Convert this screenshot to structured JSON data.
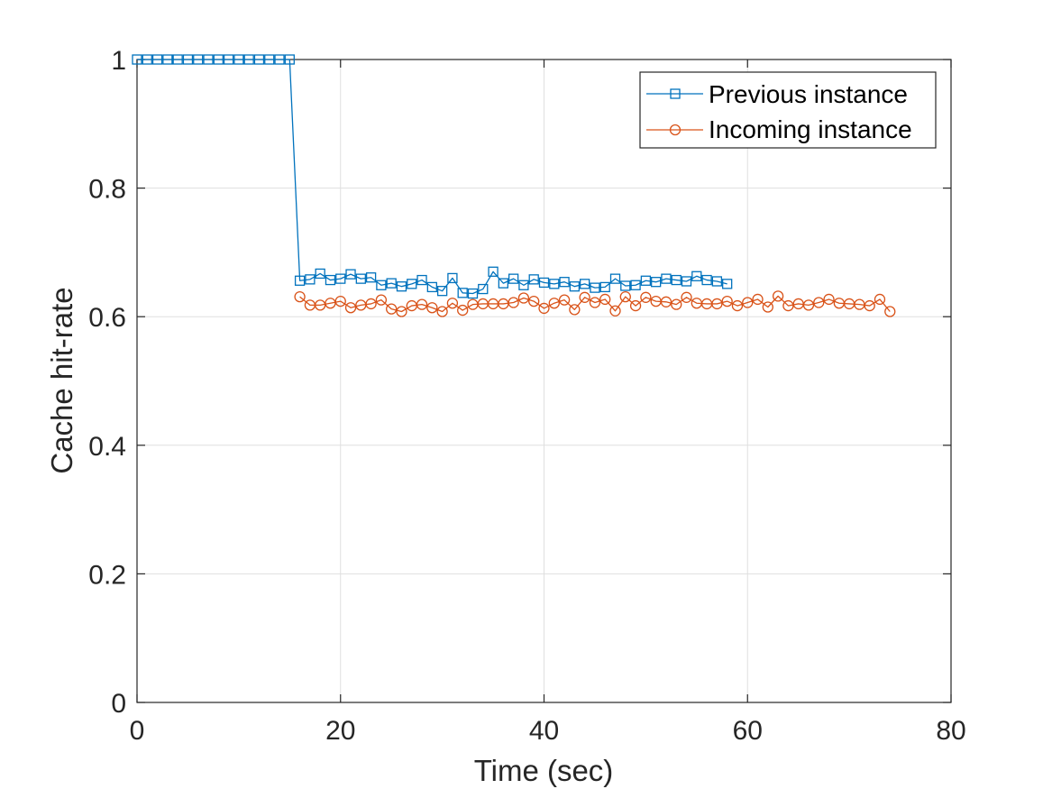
{
  "chart_data": {
    "type": "line",
    "xlabel": "Time (sec)",
    "ylabel": "Cache hit-rate",
    "xlim": [
      0,
      80
    ],
    "ylim": [
      0,
      1
    ],
    "xticks": [
      0,
      20,
      40,
      60,
      80
    ],
    "yticks": [
      0,
      0.2,
      0.4,
      0.6,
      0.8,
      1
    ],
    "xtick_labels": [
      "0",
      "20",
      "40",
      "60",
      "80"
    ],
    "ytick_labels": [
      "0",
      "0.2",
      "0.4",
      "0.6",
      "0.8",
      "1"
    ],
    "grid": true,
    "legend_position": "top-right",
    "series": [
      {
        "name": "Previous instance",
        "color": "#0072BD",
        "marker": "square",
        "x": [
          0,
          1,
          2,
          3,
          4,
          5,
          6,
          7,
          8,
          9,
          10,
          11,
          12,
          13,
          14,
          15,
          16,
          17,
          18,
          19,
          20,
          21,
          22,
          23,
          24,
          25,
          26,
          27,
          28,
          29,
          30,
          31,
          32,
          33,
          34,
          35,
          36,
          37,
          38,
          39,
          40,
          41,
          42,
          43,
          44,
          45,
          46,
          47,
          48,
          49,
          50,
          51,
          52,
          53,
          54,
          55,
          56,
          57,
          58
        ],
        "y": [
          1,
          1,
          1,
          1,
          1,
          1,
          1,
          1,
          1,
          1,
          1,
          1,
          1,
          1,
          1,
          1,
          0.656,
          0.658,
          0.667,
          0.657,
          0.659,
          0.666,
          0.659,
          0.661,
          0.649,
          0.652,
          0.647,
          0.651,
          0.657,
          0.646,
          0.64,
          0.66,
          0.637,
          0.636,
          0.643,
          0.67,
          0.652,
          0.659,
          0.649,
          0.658,
          0.653,
          0.651,
          0.654,
          0.647,
          0.651,
          0.645,
          0.646,
          0.659,
          0.648,
          0.649,
          0.656,
          0.654,
          0.659,
          0.657,
          0.655,
          0.663,
          0.657,
          0.655,
          0.651
        ]
      },
      {
        "name": "Incoming instance",
        "color": "#D95319",
        "marker": "circle",
        "x": [
          16,
          17,
          18,
          19,
          20,
          21,
          22,
          23,
          24,
          25,
          26,
          27,
          28,
          29,
          30,
          31,
          32,
          33,
          34,
          35,
          36,
          37,
          38,
          39,
          40,
          41,
          42,
          43,
          44,
          45,
          46,
          47,
          48,
          49,
          50,
          51,
          52,
          53,
          54,
          55,
          56,
          57,
          58,
          59,
          60,
          61,
          62,
          63,
          64,
          65,
          66,
          67,
          68,
          69,
          70,
          71,
          72,
          73,
          74
        ],
        "y": [
          0.631,
          0.618,
          0.618,
          0.621,
          0.624,
          0.614,
          0.618,
          0.62,
          0.626,
          0.612,
          0.608,
          0.617,
          0.619,
          0.614,
          0.608,
          0.621,
          0.61,
          0.619,
          0.62,
          0.62,
          0.62,
          0.622,
          0.629,
          0.624,
          0.613,
          0.621,
          0.626,
          0.611,
          0.63,
          0.622,
          0.627,
          0.609,
          0.631,
          0.617,
          0.63,
          0.624,
          0.623,
          0.619,
          0.63,
          0.621,
          0.62,
          0.62,
          0.624,
          0.617,
          0.622,
          0.627,
          0.615,
          0.632,
          0.617,
          0.62,
          0.618,
          0.622,
          0.627,
          0.621,
          0.62,
          0.619,
          0.617,
          0.627,
          0.608
        ]
      }
    ]
  }
}
